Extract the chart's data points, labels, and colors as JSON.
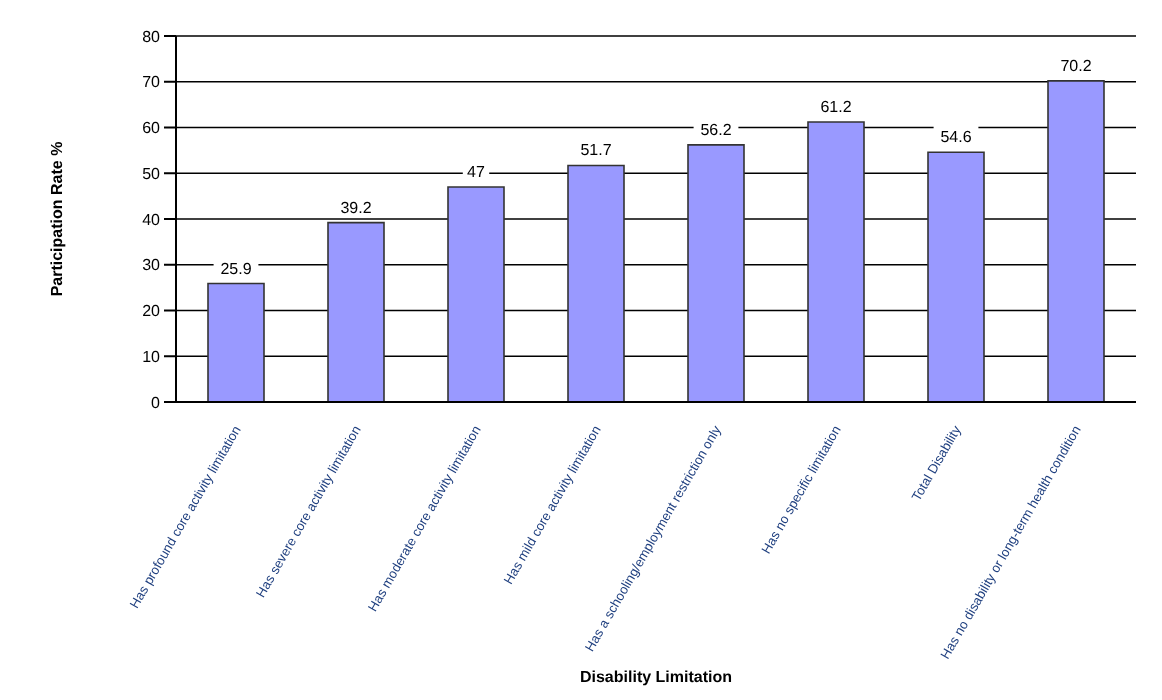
{
  "chart_data": {
    "type": "bar",
    "xlabel": "Disability Limitation",
    "ylabel": "Participation Rate %",
    "categories": [
      "Has profound core activity limitation",
      "Has severe core activity limitation",
      "Has moderate core activity limitation",
      "Has mild core activity limitation",
      "Has a schooling/employment restriction only",
      "Has no specific limitation",
      "Total Disability",
      "Has no disability or long-term health condition"
    ],
    "values": [
      25.9,
      39.2,
      47,
      51.7,
      56.2,
      61.2,
      54.6,
      70.2
    ],
    "color": "#9999ff",
    "ylim": [
      0,
      80
    ],
    "yticks": [
      0,
      10,
      20,
      30,
      40,
      50,
      60,
      70,
      80
    ],
    "grid": "y",
    "data_labels": true
  }
}
